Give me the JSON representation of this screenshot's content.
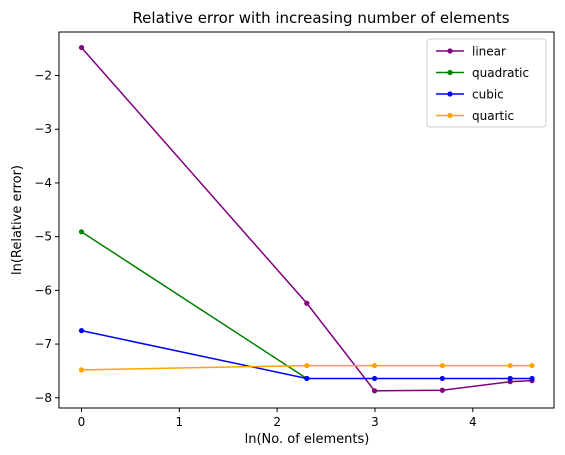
{
  "chart_data": {
    "type": "line",
    "title": "Relative error with increasing number of elements",
    "xlabel": "ln(No. of elements)",
    "ylabel": "ln(Relative error)",
    "xlim": [
      -0.23,
      4.83
    ],
    "ylim": [
      -8.19,
      -1.19
    ],
    "xticks": [
      0,
      1,
      2,
      3,
      4
    ],
    "xtick_labels": [
      "0",
      "1",
      "2",
      "3",
      "4"
    ],
    "yticks": [
      -8,
      -7,
      -6,
      -5,
      -4,
      -3,
      -2
    ],
    "ytick_labels": [
      "−8",
      "−7",
      "−6",
      "−5",
      "−4",
      "−3",
      "−2"
    ],
    "grid": false,
    "legend_position": "top-right",
    "marker": "circle",
    "series": [
      {
        "name": "linear",
        "color": "#800080",
        "x": [
          0,
          2.303,
          2.996,
          3.689,
          4.382,
          4.605
        ],
        "y": [
          -1.48,
          -6.24,
          -7.87,
          -7.86,
          -7.7,
          -7.68
        ]
      },
      {
        "name": "quadratic",
        "color": "#008000",
        "x": [
          0,
          2.303
        ],
        "y": [
          -4.91,
          -7.64
        ]
      },
      {
        "name": "cubic",
        "color": "#0000ff",
        "x": [
          0,
          2.303,
          2.996,
          3.689,
          4.382,
          4.605
        ],
        "y": [
          -6.75,
          -7.64,
          -7.64,
          -7.64,
          -7.64,
          -7.64
        ]
      },
      {
        "name": "quartic",
        "color": "#ffa500",
        "x": [
          0,
          2.303,
          2.996,
          3.689,
          4.382,
          4.605
        ],
        "y": [
          -7.48,
          -7.4,
          -7.4,
          -7.4,
          -7.4,
          -7.4
        ]
      }
    ]
  }
}
